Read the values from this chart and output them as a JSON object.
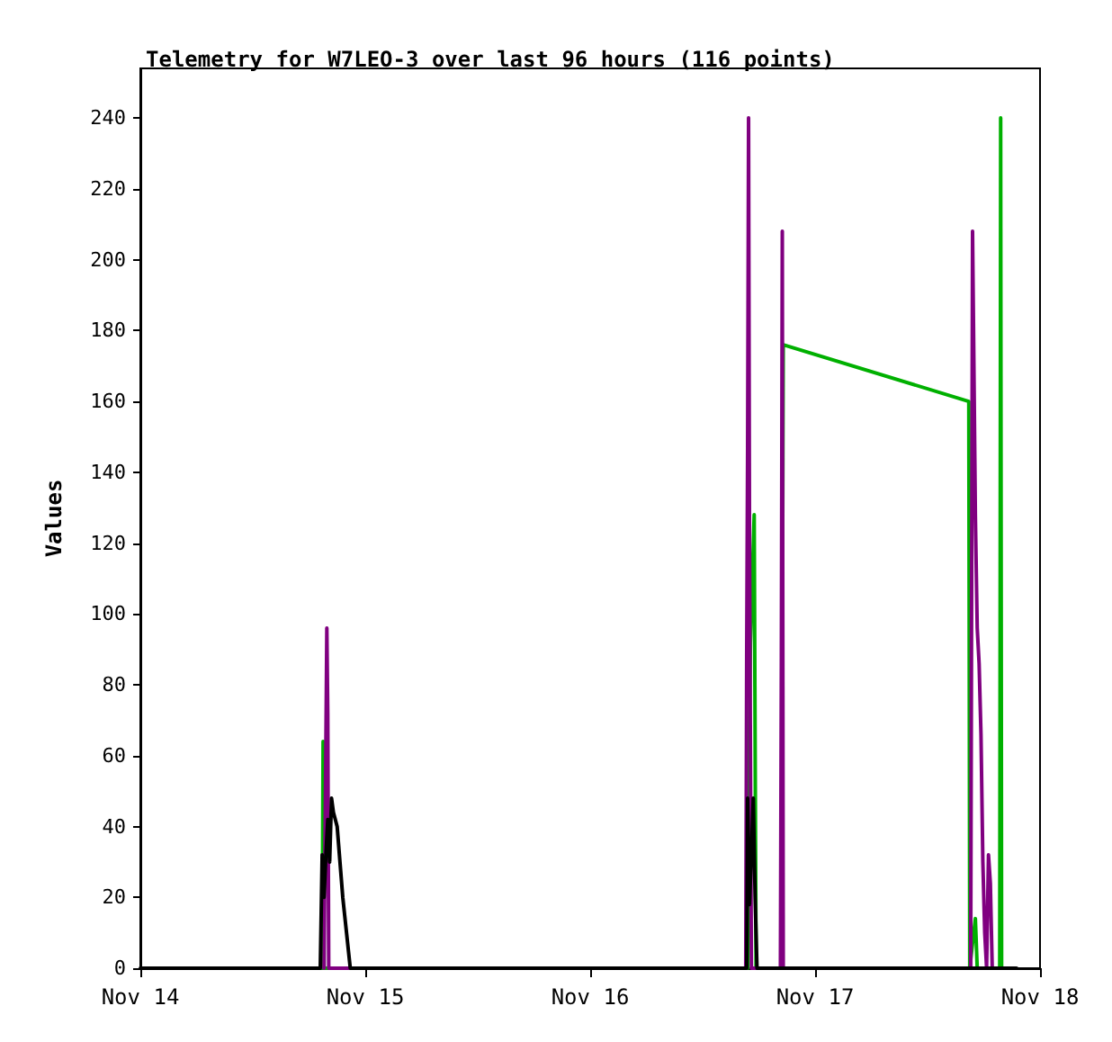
{
  "chart_data": {
    "type": "line",
    "title": "Telemetry for W7LEO-3 over last 96 hours (116 points)",
    "ylabel": "Values",
    "xlim": [
      "--11-14",
      "--11-18"
    ],
    "xticks": [
      {
        "value": "--11-14",
        "label": "Nov 14"
      },
      {
        "value": "--11-15",
        "label": "Nov 15"
      },
      {
        "value": "--11-16",
        "label": "Nov 16"
      },
      {
        "value": "--11-17",
        "label": "Nov 17"
      },
      {
        "value": "--11-18",
        "label": "Nov 18"
      }
    ],
    "ylim": [
      0,
      254
    ],
    "yticks": [
      0,
      20,
      40,
      60,
      80,
      100,
      120,
      140,
      160,
      180,
      200,
      220,
      240
    ],
    "grid": false,
    "marker": "none",
    "line_style": "solid",
    "series": [
      {
        "color": "#00b000",
        "x": [
          "--11-14T19:24",
          "--11-14T19:30",
          "--11-14T19:36",
          "--11-16T16:48",
          "--11-16T16:54",
          "--11-16T17:06",
          "--11-16T17:30",
          "--11-16T17:42",
          "--11-16T20:24",
          "--11-16T20:36",
          "--11-17T16:24",
          "--11-17T16:30",
          "--11-17T17:06",
          "--11-17T17:18",
          "--11-17T19:42",
          "--11-17T19:48",
          "--11-17T19:54"
        ],
        "values": [
          0,
          64,
          0,
          0,
          48,
          92,
          128,
          0,
          0,
          176,
          160,
          0,
          14,
          0,
          0,
          240,
          0
        ]
      },
      {
        "color": "#800080",
        "x": [
          "--11-14T19:36",
          "--11-14T19:54",
          "--11-14T20:00",
          "--11-14T20:06",
          "--11-14T22:00",
          "--11-16T16:36",
          "--11-16T16:42",
          "--11-16T16:48",
          "--11-16T16:54",
          "--11-16T17:00",
          "--11-16T17:12",
          "--11-16T20:18",
          "--11-16T20:24",
          "--11-16T20:30",
          "--11-16T20:36",
          "--11-17T16:36",
          "--11-17T16:48",
          "--11-17T16:54",
          "--11-17T17:06",
          "--11-17T17:18",
          "--11-17T17:30",
          "--11-17T17:42",
          "--11-17T17:54",
          "--11-17T18:06",
          "--11-17T18:18",
          "--11-17T18:30",
          "--11-17T18:42",
          "--11-17T18:54"
        ],
        "values": [
          0,
          96,
          72,
          0,
          0,
          0,
          88,
          147,
          240,
          120,
          0,
          0,
          88,
          208,
          0,
          0,
          208,
          182,
          128,
          96,
          86,
          66,
          30,
          10,
          0,
          32,
          24,
          0
        ]
      },
      {
        "color": "#000000",
        "x": [
          "--11-14T00:00",
          "--11-14T19:12",
          "--11-14T19:24",
          "--11-14T19:36",
          "--11-14T19:48",
          "--11-14T20:00",
          "--11-14T20:12",
          "--11-14T20:24",
          "--11-14T20:36",
          "--11-14T21:00",
          "--11-14T21:36",
          "--11-14T22:24",
          "--11-16T16:42",
          "--11-16T16:48",
          "--11-16T17:00",
          "--11-16T17:12",
          "--11-16T17:24",
          "--11-16T17:36",
          "--11-16T17:48",
          "--11-17T21:30"
        ],
        "values": [
          0,
          0,
          32,
          20,
          32,
          42,
          30,
          48,
          44,
          40,
          20,
          0,
          0,
          48,
          18,
          32,
          48,
          20,
          0,
          0
        ]
      }
    ]
  }
}
